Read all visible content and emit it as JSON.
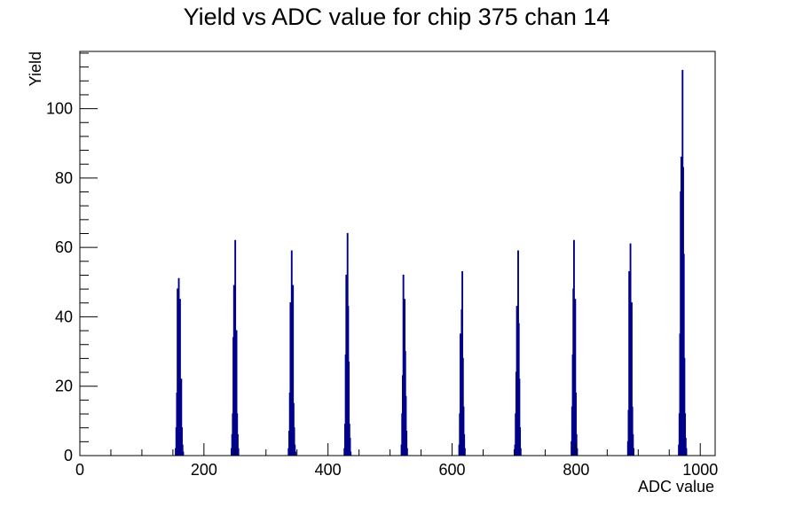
{
  "chart_data": {
    "type": "bar",
    "title": "Yield vs ADC value for chip 375 chan 14",
    "xlabel": "ADC value",
    "ylabel": "Yield",
    "xlim": [
      0,
      1024
    ],
    "ylim": [
      0,
      116.5
    ],
    "x_ticks": [
      0,
      200,
      400,
      600,
      800,
      1000
    ],
    "y_ticks": [
      0,
      20,
      40,
      60,
      80,
      100
    ],
    "grid": false,
    "legend": "none",
    "line_color": "#00008b",
    "bins": [
      {
        "x": 154,
        "y": 2
      },
      {
        "x": 155,
        "y": 8
      },
      {
        "x": 156,
        "y": 18
      },
      {
        "x": 157,
        "y": 48
      },
      {
        "x": 158,
        "y": 32
      },
      {
        "x": 159,
        "y": 51
      },
      {
        "x": 160,
        "y": 36
      },
      {
        "x": 161,
        "y": 45
      },
      {
        "x": 162,
        "y": 17
      },
      {
        "x": 163,
        "y": 22
      },
      {
        "x": 164,
        "y": 8
      },
      {
        "x": 165,
        "y": 3
      },
      {
        "x": 166,
        "y": 1
      },
      {
        "x": 244,
        "y": 2
      },
      {
        "x": 245,
        "y": 6
      },
      {
        "x": 246,
        "y": 12
      },
      {
        "x": 247,
        "y": 34
      },
      {
        "x": 248,
        "y": 49
      },
      {
        "x": 249,
        "y": 27
      },
      {
        "x": 250,
        "y": 62
      },
      {
        "x": 251,
        "y": 30
      },
      {
        "x": 252,
        "y": 36
      },
      {
        "x": 253,
        "y": 12
      },
      {
        "x": 254,
        "y": 6
      },
      {
        "x": 255,
        "y": 2
      },
      {
        "x": 336,
        "y": 2
      },
      {
        "x": 337,
        "y": 7
      },
      {
        "x": 338,
        "y": 18
      },
      {
        "x": 339,
        "y": 44
      },
      {
        "x": 340,
        "y": 28
      },
      {
        "x": 341,
        "y": 59
      },
      {
        "x": 342,
        "y": 36
      },
      {
        "x": 343,
        "y": 49
      },
      {
        "x": 344,
        "y": 15
      },
      {
        "x": 345,
        "y": 8
      },
      {
        "x": 346,
        "y": 3
      },
      {
        "x": 347,
        "y": 1
      },
      {
        "x": 426,
        "y": 2
      },
      {
        "x": 427,
        "y": 9
      },
      {
        "x": 428,
        "y": 29
      },
      {
        "x": 429,
        "y": 52
      },
      {
        "x": 430,
        "y": 28
      },
      {
        "x": 431,
        "y": 64
      },
      {
        "x": 432,
        "y": 43
      },
      {
        "x": 433,
        "y": 27
      },
      {
        "x": 434,
        "y": 9
      },
      {
        "x": 435,
        "y": 5
      },
      {
        "x": 436,
        "y": 1
      },
      {
        "x": 518,
        "y": 3
      },
      {
        "x": 519,
        "y": 12
      },
      {
        "x": 520,
        "y": 23
      },
      {
        "x": 521,
        "y": 52
      },
      {
        "x": 522,
        "y": 31
      },
      {
        "x": 523,
        "y": 45
      },
      {
        "x": 524,
        "y": 30
      },
      {
        "x": 525,
        "y": 17
      },
      {
        "x": 526,
        "y": 7
      },
      {
        "x": 527,
        "y": 2
      },
      {
        "x": 611,
        "y": 3
      },
      {
        "x": 612,
        "y": 12
      },
      {
        "x": 613,
        "y": 35
      },
      {
        "x": 614,
        "y": 33
      },
      {
        "x": 615,
        "y": 42
      },
      {
        "x": 616,
        "y": 53
      },
      {
        "x": 617,
        "y": 28
      },
      {
        "x": 618,
        "y": 14
      },
      {
        "x": 619,
        "y": 6
      },
      {
        "x": 620,
        "y": 2
      },
      {
        "x": 701,
        "y": 3
      },
      {
        "x": 702,
        "y": 12
      },
      {
        "x": 703,
        "y": 24
      },
      {
        "x": 704,
        "y": 43
      },
      {
        "x": 705,
        "y": 37
      },
      {
        "x": 706,
        "y": 59
      },
      {
        "x": 707,
        "y": 38
      },
      {
        "x": 708,
        "y": 22
      },
      {
        "x": 709,
        "y": 8
      },
      {
        "x": 710,
        "y": 2
      },
      {
        "x": 792,
        "y": 4
      },
      {
        "x": 793,
        "y": 14
      },
      {
        "x": 794,
        "y": 29
      },
      {
        "x": 795,
        "y": 48
      },
      {
        "x": 796,
        "y": 62
      },
      {
        "x": 797,
        "y": 33
      },
      {
        "x": 798,
        "y": 45
      },
      {
        "x": 799,
        "y": 18
      },
      {
        "x": 800,
        "y": 6
      },
      {
        "x": 801,
        "y": 2
      },
      {
        "x": 883,
        "y": 4
      },
      {
        "x": 884,
        "y": 13
      },
      {
        "x": 885,
        "y": 53
      },
      {
        "x": 886,
        "y": 32
      },
      {
        "x": 887,
        "y": 61
      },
      {
        "x": 888,
        "y": 38
      },
      {
        "x": 889,
        "y": 44
      },
      {
        "x": 890,
        "y": 14
      },
      {
        "x": 891,
        "y": 6
      },
      {
        "x": 892,
        "y": 2
      },
      {
        "x": 965,
        "y": 3
      },
      {
        "x": 966,
        "y": 12
      },
      {
        "x": 967,
        "y": 35
      },
      {
        "x": 968,
        "y": 76
      },
      {
        "x": 969,
        "y": 86
      },
      {
        "x": 970,
        "y": 70
      },
      {
        "x": 971,
        "y": 111
      },
      {
        "x": 972,
        "y": 83
      },
      {
        "x": 973,
        "y": 58
      },
      {
        "x": 974,
        "y": 28
      },
      {
        "x": 975,
        "y": 12
      },
      {
        "x": 976,
        "y": 5
      },
      {
        "x": 977,
        "y": 2
      }
    ]
  }
}
